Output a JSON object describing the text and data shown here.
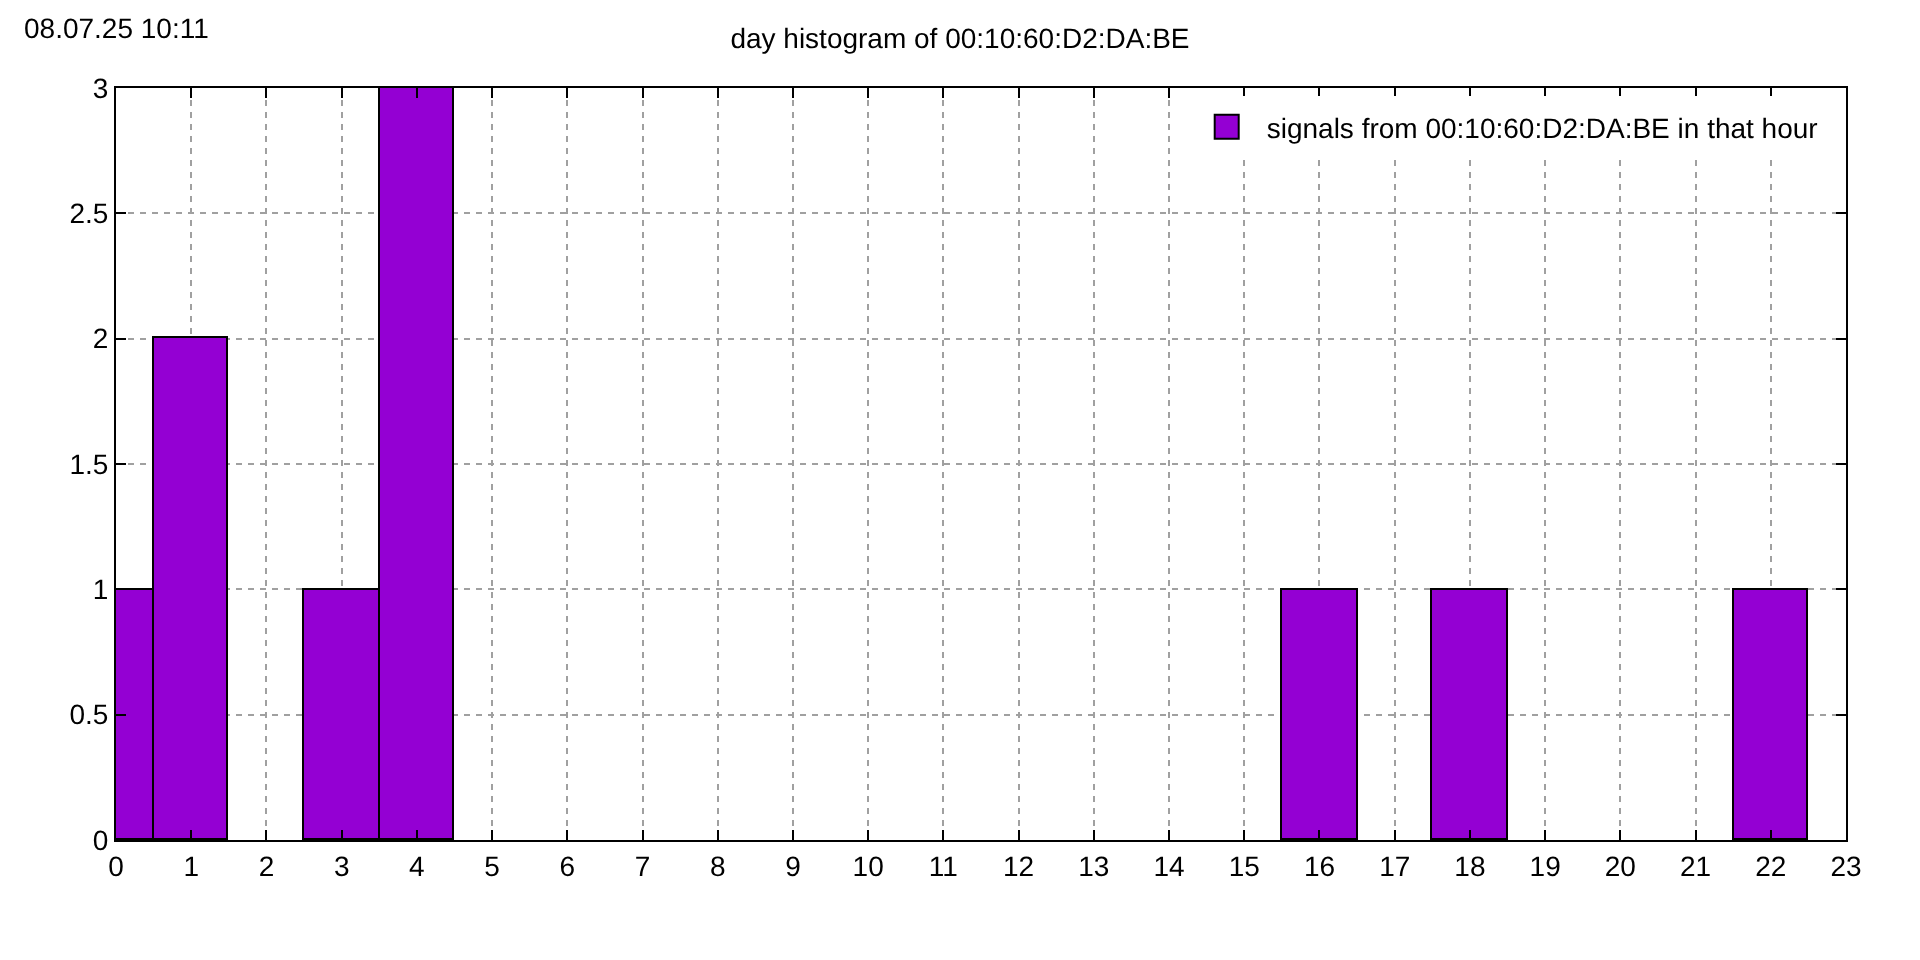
{
  "chart_data": {
    "type": "bar",
    "title": "day histogram of 00:10:60:D2:DA:BE",
    "annotations": [
      "08.07.25 10:11"
    ],
    "x": [
      0,
      1,
      3,
      4,
      16,
      18,
      22
    ],
    "series": [
      {
        "name": "signals from 00:10:60:D2:DA:BE in that hour",
        "color": "#9400d3",
        "values": [
          1,
          2,
          1,
          3,
          1,
          1,
          1
        ]
      }
    ],
    "xlim": [
      0,
      23
    ],
    "xticks": [
      0,
      1,
      2,
      3,
      4,
      5,
      6,
      7,
      8,
      9,
      10,
      11,
      12,
      13,
      14,
      15,
      16,
      17,
      18,
      19,
      20,
      21,
      22,
      23
    ],
    "ylim": [
      0,
      3
    ],
    "yticks": [
      0,
      0.5,
      1,
      1.5,
      2,
      2.5,
      3
    ],
    "grid": true,
    "legend": "top right"
  }
}
